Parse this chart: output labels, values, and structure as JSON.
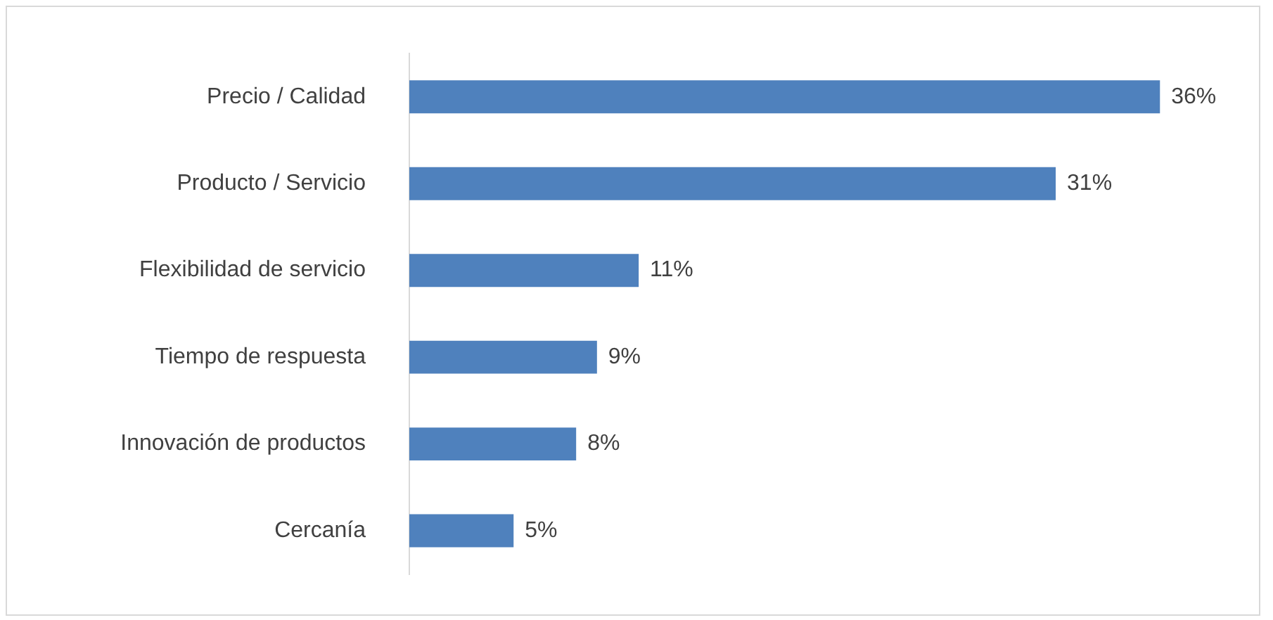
{
  "chart_data": {
    "type": "bar",
    "orientation": "horizontal",
    "categories": [
      "Precio / Calidad",
      "Producto / Servicio",
      "Flexibilidad de servicio",
      "Tiempo de respuesta",
      "Innovación de productos",
      "Cercanía"
    ],
    "values": [
      36,
      31,
      11,
      9,
      8,
      5
    ],
    "color": "#4f81bd",
    "value_labels": [
      "36%",
      "31%",
      "11%",
      "9%",
      "8%",
      "5%"
    ],
    "tick_labels": "y"
  }
}
